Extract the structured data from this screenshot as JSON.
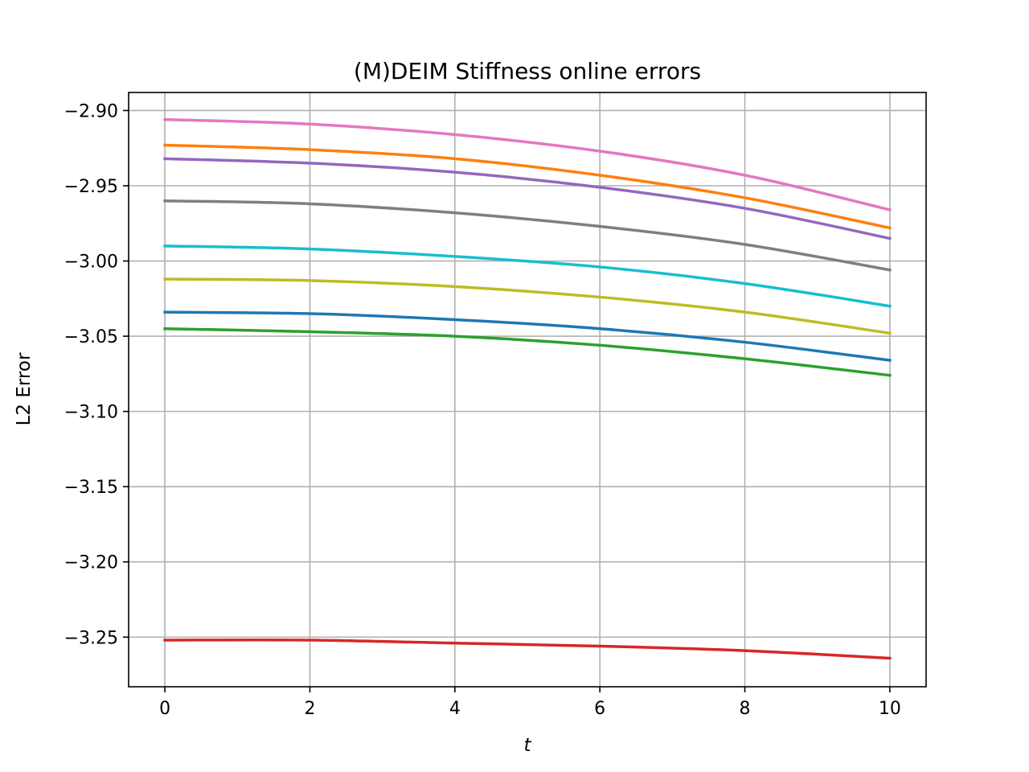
{
  "chart_data": {
    "type": "line",
    "title": "(M)DEIM Stiffness online errors",
    "xlabel": "t",
    "ylabel": "L2 Error",
    "xlim": [
      -0.5,
      10.5
    ],
    "ylim": [
      -3.283,
      -2.888
    ],
    "xticks": [
      0,
      2,
      4,
      6,
      8,
      10
    ],
    "xtick_labels": [
      "0",
      "2",
      "4",
      "6",
      "8",
      "10"
    ],
    "yticks": [
      -2.9,
      -2.95,
      -3.0,
      -3.05,
      -3.1,
      -3.15,
      -3.2,
      -3.25
    ],
    "ytick_labels": [
      "−2.90",
      "−2.95",
      "−3.00",
      "−3.05",
      "−3.10",
      "−3.15",
      "−3.20",
      "−3.25"
    ],
    "grid": true,
    "x": [
      0,
      2,
      4,
      6,
      8,
      10
    ],
    "series": [
      {
        "color": "#1f77b4",
        "values": [
          -3.034,
          -3.035,
          -3.039,
          -3.045,
          -3.054,
          -3.066
        ]
      },
      {
        "color": "#ff7f0e",
        "values": [
          -2.923,
          -2.926,
          -2.932,
          -2.943,
          -2.958,
          -2.978
        ]
      },
      {
        "color": "#2ca02c",
        "values": [
          -3.045,
          -3.047,
          -3.05,
          -3.056,
          -3.065,
          -3.076
        ]
      },
      {
        "color": "#d62728",
        "values": [
          -3.252,
          -3.252,
          -3.254,
          -3.256,
          -3.259,
          -3.264
        ]
      },
      {
        "color": "#9467bd",
        "values": [
          -2.932,
          -2.935,
          -2.941,
          -2.951,
          -2.965,
          -2.985
        ]
      },
      {
        "color": "#7f7f7f",
        "values": [
          -2.96,
          -2.962,
          -2.968,
          -2.977,
          -2.989,
          -3.006
        ]
      },
      {
        "color": "#e377c2",
        "values": [
          -2.906,
          -2.909,
          -2.916,
          -2.927,
          -2.943,
          -2.966
        ]
      },
      {
        "color": "#bcbd22",
        "values": [
          -3.012,
          -3.013,
          -3.017,
          -3.024,
          -3.034,
          -3.048
        ]
      },
      {
        "color": "#17becf",
        "values": [
          -2.99,
          -2.992,
          -2.997,
          -3.004,
          -3.015,
          -3.03
        ]
      }
    ]
  }
}
